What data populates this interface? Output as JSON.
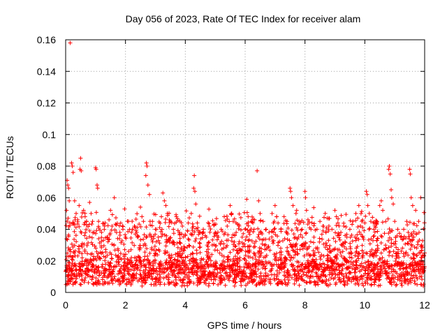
{
  "chart_data": {
    "type": "scatter",
    "title": "Day 056 of 2023, Rate Of TEC Index for receiver alam",
    "xlabel": "GPS time / hours",
    "ylabel": "ROTI / TECUs",
    "xlim": [
      0,
      12
    ],
    "ylim": [
      0,
      0.16
    ],
    "x_ticks": [
      0,
      2,
      4,
      6,
      8,
      10,
      12
    ],
    "y_ticks": [
      0,
      0.02,
      0.04,
      0.06,
      0.08,
      0.1,
      0.12,
      0.14,
      0.16
    ],
    "x_tick_labels": [
      "0",
      "2",
      "4",
      "6",
      "8",
      "10",
      "12"
    ],
    "y_tick_labels": [
      "0",
      "0.02",
      "0.04",
      "0.06",
      "0.08",
      "0.1",
      "0.12",
      "0.14",
      "0.16"
    ],
    "grid": true,
    "marker": "+",
    "color": "#ff0000",
    "series": [
      {
        "points": [
          [
            0.15,
            0.158
          ],
          [
            0.05,
            0.071
          ],
          [
            0.07,
            0.068
          ],
          [
            0.1,
            0.066
          ],
          [
            0.12,
            0.058
          ],
          [
            0.2,
            0.082
          ],
          [
            0.22,
            0.08
          ],
          [
            0.25,
            0.076
          ],
          [
            0.03,
            0.052
          ],
          [
            0.08,
            0.047
          ],
          [
            0.14,
            0.044
          ],
          [
            0.3,
            0.058
          ],
          [
            0.35,
            0.05
          ],
          [
            0.4,
            0.046
          ],
          [
            0.45,
            0.055
          ],
          [
            0.5,
            0.085
          ],
          [
            0.52,
            0.077
          ],
          [
            0.48,
            0.078
          ],
          [
            0.6,
            0.052
          ],
          [
            0.65,
            0.048
          ],
          [
            0.7,
            0.045
          ],
          [
            0.8,
            0.057
          ],
          [
            0.85,
            0.05
          ],
          [
            0.9,
            0.045
          ],
          [
            1.0,
            0.079
          ],
          [
            1.02,
            0.078
          ],
          [
            1.05,
            0.068
          ],
          [
            1.07,
            0.066
          ],
          [
            1.1,
            0.045
          ],
          [
            1.2,
            0.038
          ],
          [
            1.3,
            0.042
          ],
          [
            1.5,
            0.052
          ],
          [
            1.45,
            0.046
          ],
          [
            1.55,
            0.042
          ],
          [
            1.7,
            0.038
          ],
          [
            1.8,
            0.034
          ],
          [
            1.9,
            0.042
          ],
          [
            2.0,
            0.035
          ],
          [
            2.1,
            0.045
          ],
          [
            2.2,
            0.038
          ],
          [
            2.3,
            0.042
          ],
          [
            2.4,
            0.035
          ],
          [
            2.5,
            0.054
          ],
          [
            2.55,
            0.048
          ],
          [
            2.6,
            0.045
          ],
          [
            2.7,
            0.082
          ],
          [
            2.72,
            0.08
          ],
          [
            2.68,
            0.074
          ],
          [
            2.75,
            0.068
          ],
          [
            2.8,
            0.062
          ],
          [
            2.9,
            0.045
          ],
          [
            3.0,
            0.04
          ],
          [
            3.1,
            0.035
          ],
          [
            3.2,
            0.048
          ],
          [
            3.25,
            0.063
          ],
          [
            3.3,
            0.058
          ],
          [
            3.35,
            0.055
          ],
          [
            3.4,
            0.05
          ],
          [
            3.5,
            0.045
          ],
          [
            3.6,
            0.04
          ],
          [
            3.7,
            0.048
          ],
          [
            3.8,
            0.038
          ],
          [
            3.9,
            0.042
          ],
          [
            4.0,
            0.036
          ],
          [
            4.1,
            0.044
          ],
          [
            4.2,
            0.05
          ],
          [
            4.3,
            0.074
          ],
          [
            4.28,
            0.066
          ],
          [
            4.32,
            0.064
          ],
          [
            4.35,
            0.056
          ],
          [
            4.4,
            0.044
          ],
          [
            4.5,
            0.038
          ],
          [
            4.6,
            0.04
          ],
          [
            4.7,
            0.035
          ],
          [
            4.8,
            0.042
          ],
          [
            4.9,
            0.03
          ],
          [
            5.0,
            0.038
          ],
          [
            5.1,
            0.035
          ],
          [
            5.2,
            0.04
          ],
          [
            5.3,
            0.048
          ],
          [
            5.4,
            0.042
          ],
          [
            5.5,
            0.055
          ],
          [
            5.55,
            0.05
          ],
          [
            5.6,
            0.045
          ],
          [
            5.7,
            0.038
          ],
          [
            5.8,
            0.042
          ],
          [
            5.9,
            0.035
          ],
          [
            6.0,
            0.04
          ],
          [
            6.05,
            0.059
          ],
          [
            6.1,
            0.048
          ],
          [
            6.2,
            0.045
          ],
          [
            6.3,
            0.04
          ],
          [
            6.4,
            0.077
          ],
          [
            6.45,
            0.058
          ],
          [
            6.5,
            0.05
          ],
          [
            6.6,
            0.045
          ],
          [
            6.7,
            0.04
          ],
          [
            6.8,
            0.038
          ],
          [
            6.9,
            0.05
          ],
          [
            7.0,
            0.055
          ],
          [
            7.05,
            0.048
          ],
          [
            7.1,
            0.044
          ],
          [
            7.2,
            0.04
          ],
          [
            7.3,
            0.048
          ],
          [
            7.4,
            0.045
          ],
          [
            7.5,
            0.066
          ],
          [
            7.52,
            0.064
          ],
          [
            7.55,
            0.06
          ],
          [
            7.6,
            0.055
          ],
          [
            7.7,
            0.05
          ],
          [
            7.8,
            0.045
          ],
          [
            7.9,
            0.04
          ],
          [
            8.0,
            0.064
          ],
          [
            8.02,
            0.06
          ],
          [
            8.05,
            0.052
          ],
          [
            8.1,
            0.046
          ],
          [
            8.2,
            0.04
          ],
          [
            8.3,
            0.035
          ],
          [
            8.4,
            0.04
          ],
          [
            8.5,
            0.045
          ],
          [
            8.6,
            0.042
          ],
          [
            8.7,
            0.038
          ],
          [
            8.8,
            0.042
          ],
          [
            8.9,
            0.04
          ],
          [
            9.0,
            0.052
          ],
          [
            9.05,
            0.048
          ],
          [
            9.1,
            0.044
          ],
          [
            9.2,
            0.038
          ],
          [
            9.3,
            0.042
          ],
          [
            9.4,
            0.035
          ],
          [
            9.5,
            0.04
          ],
          [
            9.6,
            0.045
          ],
          [
            9.7,
            0.05
          ],
          [
            9.8,
            0.055
          ],
          [
            9.9,
            0.045
          ],
          [
            10.0,
            0.044
          ],
          [
            10.05,
            0.064
          ],
          [
            10.08,
            0.062
          ],
          [
            10.1,
            0.055
          ],
          [
            10.15,
            0.05
          ],
          [
            10.2,
            0.045
          ],
          [
            10.3,
            0.04
          ],
          [
            10.4,
            0.045
          ],
          [
            10.5,
            0.055
          ],
          [
            10.55,
            0.058
          ],
          [
            10.6,
            0.052
          ],
          [
            10.7,
            0.045
          ],
          [
            10.8,
            0.078
          ],
          [
            10.82,
            0.08
          ],
          [
            10.85,
            0.075
          ],
          [
            10.88,
            0.065
          ],
          [
            10.9,
            0.06
          ],
          [
            10.95,
            0.056
          ],
          [
            11.0,
            0.045
          ],
          [
            11.1,
            0.04
          ],
          [
            11.2,
            0.035
          ],
          [
            11.3,
            0.04
          ],
          [
            11.4,
            0.045
          ],
          [
            11.5,
            0.078
          ],
          [
            11.52,
            0.075
          ],
          [
            11.55,
            0.06
          ],
          [
            11.6,
            0.055
          ],
          [
            11.7,
            0.052
          ],
          [
            11.8,
            0.045
          ],
          [
            11.9,
            0.03
          ],
          [
            12.0,
            0.025
          ]
        ]
      }
    ]
  }
}
